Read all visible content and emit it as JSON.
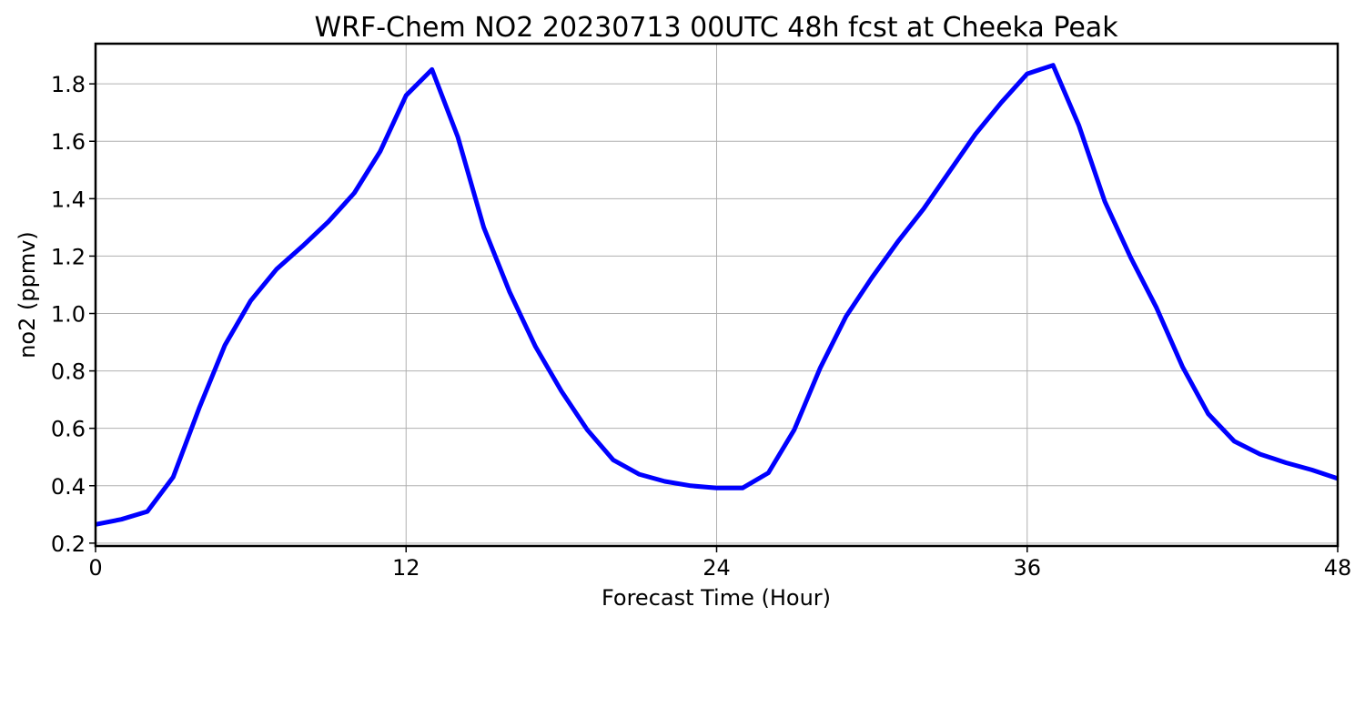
{
  "chart_data": {
    "type": "line",
    "title": "WRF-Chem NO2  20230713 00UTC 48h fcst at Cheeka Peak",
    "xlabel": "Forecast Time (Hour)",
    "ylabel": "no2  (ppmv)",
    "xlim": [
      0,
      48
    ],
    "ylim": [
      0.19,
      1.94
    ],
    "xticks": [
      0,
      12,
      24,
      36,
      48
    ],
    "xtick_labels": [
      "0",
      "12",
      "24",
      "36",
      "48"
    ],
    "yticks": [
      0.2,
      0.4,
      0.6,
      0.8,
      1.0,
      1.2,
      1.4,
      1.6,
      1.8
    ],
    "ytick_labels": [
      "0.2",
      "0.4",
      "0.6",
      "0.8",
      "1.0",
      "1.2",
      "1.4",
      "1.6",
      "1.8"
    ],
    "grid": true,
    "series": [
      {
        "color": "#0000ff",
        "x": [
          0,
          1,
          2,
          3,
          4,
          5,
          6,
          7,
          8,
          9,
          10,
          11,
          12,
          13,
          14,
          15,
          16,
          17,
          18,
          19,
          20,
          21,
          22,
          23,
          24,
          25,
          26,
          27,
          28,
          29,
          30,
          31,
          32,
          33,
          34,
          35,
          36,
          37,
          38,
          39,
          40,
          41,
          42,
          43,
          44,
          45,
          46,
          47,
          48
        ],
        "values": [
          0.265,
          0.283,
          0.31,
          0.43,
          0.67,
          0.89,
          1.045,
          1.155,
          1.235,
          1.32,
          1.42,
          1.565,
          1.76,
          1.85,
          1.615,
          1.3,
          1.075,
          0.885,
          0.73,
          0.595,
          0.49,
          0.44,
          0.415,
          0.4,
          0.392,
          0.392,
          0.445,
          0.595,
          0.81,
          0.99,
          1.125,
          1.25,
          1.365,
          1.495,
          1.625,
          1.735,
          1.835,
          1.865,
          1.655,
          1.39,
          1.195,
          1.02,
          0.815,
          0.65,
          0.555,
          0.51,
          0.48,
          0.455,
          0.425
        ]
      }
    ]
  }
}
